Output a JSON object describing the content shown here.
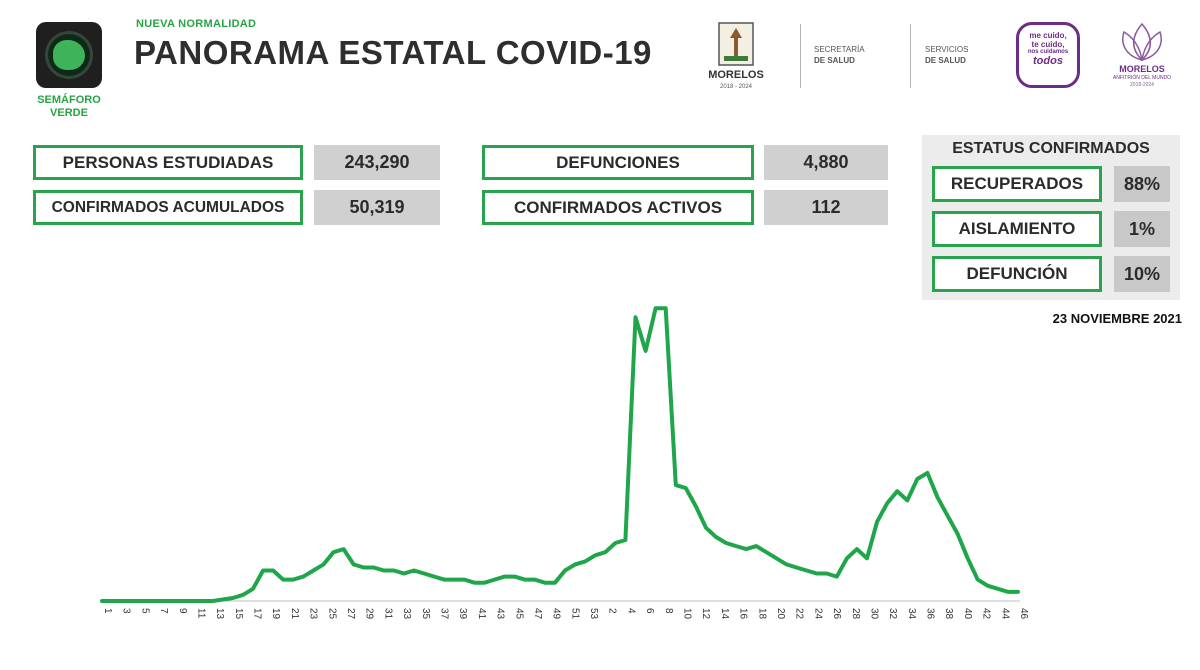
{
  "header": {
    "kicker": "NUEVA NORMALIDAD",
    "title": "PANORAMA ESTATAL COVID-19",
    "semaforo_line1": "SEMÁFORO",
    "semaforo_line2": "VERDE"
  },
  "logos": {
    "morelos": "MORELOS",
    "morelos_years": "2018 - 2024",
    "secretaria_line1": "SECRETARÍA",
    "secretaria_line2": "DE SALUD",
    "servicios_line1": "SERVICIOS",
    "servicios_line2": "DE SALUD",
    "campaign_line1": "me cuido,",
    "campaign_line2": "te cuido,",
    "campaign_line3": "nos cuidamos",
    "campaign_line4": "todos",
    "morelos2": "MORELOS",
    "morelos2_sub": "ANFITRIÓN DEL MUNDO",
    "morelos2_years": "2018-2024"
  },
  "metrics": {
    "personas_label": "PERSONAS ESTUDIADAS",
    "personas_value": "243,290",
    "confirmados_label": "CONFIRMADOS ACUMULADOS",
    "confirmados_value": "50,319",
    "defunciones_label": "DEFUNCIONES",
    "defunciones_value": "4,880",
    "activos_label": "CONFIRMADOS ACTIVOS",
    "activos_value": "112"
  },
  "status": {
    "title": "ESTATUS CONFIRMADOS",
    "recuperados_label": "RECUPERADOS",
    "recuperados_value": "88%",
    "aislamiento_label": "AISLAMIENTO",
    "aislamiento_value": "1%",
    "defuncion_label": "DEFUNCIÓN",
    "defuncion_value": "10%"
  },
  "date": "23 NOVIEMBRE 2021",
  "colors": {
    "accent_green": "#27a345",
    "line_green": "#1fa64a",
    "value_gray": "#d0d0d0",
    "purple": "#6b2d86"
  },
  "chart_data": {
    "type": "line",
    "title": "",
    "xlabel": "",
    "ylabel": "",
    "x_tick_labels": [
      "1",
      "3",
      "5",
      "7",
      "9",
      "11",
      "13",
      "15",
      "17",
      "19",
      "21",
      "23",
      "25",
      "27",
      "29",
      "31",
      "33",
      "35",
      "37",
      "39",
      "41",
      "43",
      "45",
      "47",
      "49",
      "51",
      "53",
      "2",
      "4",
      "6",
      "8",
      "10",
      "12",
      "14",
      "16",
      "18",
      "20",
      "22",
      "24",
      "26",
      "28",
      "30",
      "32",
      "34",
      "36",
      "38",
      "40",
      "42",
      "44",
      "46"
    ],
    "ylim": [
      0,
      100
    ],
    "series": [
      {
        "values": [
          0,
          0,
          0,
          0,
          0,
          0,
          0,
          0,
          0,
          0,
          0,
          0,
          0.5,
          1,
          2,
          4,
          10,
          10,
          7,
          7,
          8,
          10,
          12,
          16,
          17,
          12,
          11,
          11,
          10,
          10,
          9,
          10,
          9,
          8,
          7,
          7,
          7,
          6,
          6,
          7,
          8,
          8,
          7,
          7,
          6,
          6,
          10,
          12,
          13,
          15,
          16,
          19,
          20,
          93,
          82,
          96,
          96,
          38,
          37,
          31,
          24,
          21,
          19,
          18,
          17,
          18,
          16,
          14,
          12,
          11,
          10,
          9,
          9,
          8,
          14,
          17,
          14,
          26,
          32,
          36,
          33,
          40,
          42,
          34,
          28,
          22,
          14,
          7,
          5,
          4,
          3,
          3
        ]
      }
    ]
  }
}
